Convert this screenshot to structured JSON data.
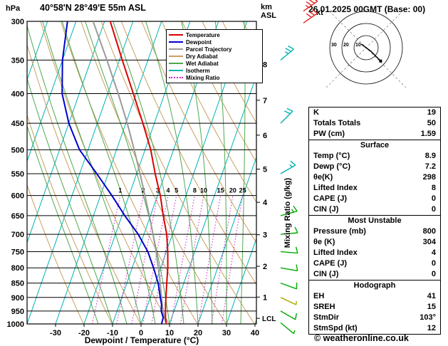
{
  "header": {
    "pressure_unit": "hPa",
    "station_title": "40°58'N 28°49'E 55m ASL",
    "altitude_unit_top": "km",
    "altitude_unit_bottom": "ASL",
    "datetime": "26.01.2025 00GMT (Base: 00)"
  },
  "skewt": {
    "xlabel": "Dewpoint / Temperature (°C)",
    "right_axis_label": "Mixing Ratio (g/kg)",
    "lcl_label": "LCL",
    "legend": [
      {
        "label": "Temperature",
        "color": "#dd0000",
        "style": "solid"
      },
      {
        "label": "Dewpoint",
        "color": "#0000cc",
        "style": "solid"
      },
      {
        "label": "Parcel Trajectory",
        "color": "#9a9a9a",
        "style": "solid"
      },
      {
        "label": "Dry Adiabat",
        "color": "#c8a05f",
        "style": "solid"
      },
      {
        "label": "Wet Adiabat",
        "color": "#4fa84f",
        "style": "solid"
      },
      {
        "label": "Isotherm",
        "color": "#00b2b2",
        "style": "solid"
      },
      {
        "label": "Mixing Ratio",
        "color": "#cc22cc",
        "style": "dotted"
      }
    ],
    "colors": {
      "temperature": "#dd0000",
      "dewpoint": "#0000cc",
      "parcel": "#9a9a9a",
      "dry_adiabat": "#c8a05f",
      "wet_adiabat": "#4fa84f",
      "isotherm": "#00b2b2",
      "mixing_ratio": "#cc22cc",
      "grid": "#000000"
    }
  },
  "chart_data": {
    "type": "line",
    "y_axis": {
      "label": "hPa",
      "scale": "log",
      "range": [
        300,
        1000
      ],
      "ticks": [
        300,
        350,
        400,
        450,
        500,
        550,
        600,
        650,
        700,
        750,
        800,
        850,
        900,
        950,
        1000
      ]
    },
    "x_axis": {
      "label": "Dewpoint / Temperature (°C)",
      "ticks": [
        -30,
        -20,
        -10,
        0,
        10,
        20,
        30,
        40
      ],
      "surface_range": [
        -40,
        40.5
      ]
    },
    "km_asl_ticks": [
      1,
      2,
      3,
      4,
      5,
      6,
      7,
      8
    ],
    "mixing_ratio_lines": [
      1,
      2,
      3,
      4,
      5,
      8,
      10,
      15,
      20,
      25
    ],
    "lcl_pressure_hpa": 978,
    "series": [
      {
        "name": "Temperature",
        "color": "#dd0000",
        "width": 2,
        "points": [
          [
            1000,
            8.9
          ],
          [
            975,
            7.8
          ],
          [
            950,
            7.0
          ],
          [
            925,
            6.2
          ],
          [
            900,
            5.5
          ],
          [
            850,
            4.0
          ],
          [
            800,
            2.5
          ],
          [
            750,
            0.5
          ],
          [
            700,
            -2.0
          ],
          [
            650,
            -5.5
          ],
          [
            600,
            -9.0
          ],
          [
            550,
            -13.5
          ],
          [
            500,
            -18.0
          ],
          [
            450,
            -24.0
          ],
          [
            400,
            -31.0
          ],
          [
            350,
            -39.0
          ],
          [
            300,
            -48.0
          ]
        ]
      },
      {
        "name": "Dewpoint",
        "color": "#0000cc",
        "width": 2,
        "points": [
          [
            1000,
            7.2
          ],
          [
            975,
            7.0
          ],
          [
            950,
            5.5
          ],
          [
            925,
            4.8
          ],
          [
            900,
            3.5
          ],
          [
            850,
            1.0
          ],
          [
            800,
            -2.5
          ],
          [
            750,
            -6.5
          ],
          [
            700,
            -12.0
          ],
          [
            650,
            -19.0
          ],
          [
            600,
            -26.0
          ],
          [
            550,
            -34.0
          ],
          [
            500,
            -43.0
          ],
          [
            450,
            -50.0
          ],
          [
            400,
            -56.0
          ],
          [
            350,
            -60.0
          ],
          [
            300,
            -63.0
          ]
        ]
      },
      {
        "name": "Parcel Trajectory",
        "color": "#9a9a9a",
        "width": 2,
        "points": [
          [
            1000,
            8.9
          ],
          [
            975,
            7.4
          ],
          [
            950,
            6.2
          ],
          [
            925,
            5.0
          ],
          [
            900,
            3.9
          ],
          [
            850,
            1.7
          ],
          [
            800,
            -0.8
          ],
          [
            750,
            -3.6
          ],
          [
            700,
            -6.8
          ],
          [
            650,
            -10.4
          ],
          [
            600,
            -14.4
          ],
          [
            550,
            -18.8
          ],
          [
            500,
            -23.8
          ],
          [
            450,
            -29.5
          ],
          [
            400,
            -36.3
          ],
          [
            350,
            -44.4
          ],
          [
            300,
            -54.0
          ]
        ]
      }
    ],
    "wind_barbs": [
      {
        "p": 288,
        "dir_deg": 55,
        "speed_kt": 35,
        "color": "#dd2222",
        "x_offset": 32
      },
      {
        "p": 302,
        "dir_deg": 55,
        "speed_kt": 30,
        "color": "#dd2222",
        "x_offset": 32
      },
      {
        "p": 350,
        "dir_deg": 50,
        "speed_kt": 25,
        "color": "#00b2b2",
        "x_offset": 0
      },
      {
        "p": 450,
        "dir_deg": 45,
        "speed_kt": 20,
        "color": "#00b2b2",
        "x_offset": 0
      },
      {
        "p": 550,
        "dir_deg": 60,
        "speed_kt": 15,
        "color": "#00b2b2",
        "x_offset": 0
      },
      {
        "p": 650,
        "dir_deg": 75,
        "speed_kt": 15,
        "color": "#00aa00",
        "x_offset": 0
      },
      {
        "p": 700,
        "dir_deg": 85,
        "speed_kt": 10,
        "color": "#00aa00",
        "x_offset": 0
      },
      {
        "p": 750,
        "dir_deg": 95,
        "speed_kt": 10,
        "color": "#00aa00",
        "x_offset": 0
      },
      {
        "p": 800,
        "dir_deg": 100,
        "speed_kt": 10,
        "color": "#00aa00",
        "x_offset": 0
      },
      {
        "p": 850,
        "dir_deg": 110,
        "speed_kt": 10,
        "color": "#00aa00",
        "x_offset": 0
      },
      {
        "p": 900,
        "dir_deg": 115,
        "speed_kt": 5,
        "color": "#aaa800",
        "x_offset": 0
      },
      {
        "p": 950,
        "dir_deg": 120,
        "speed_kt": 10,
        "color": "#00aa00",
        "x_offset": 0
      },
      {
        "p": 995,
        "dir_deg": 130,
        "speed_kt": 5,
        "color": "#00aa00",
        "x_offset": 0
      }
    ]
  },
  "hodograph": {
    "unit_label": "kt",
    "rings_kt": [
      10,
      20,
      30
    ],
    "trace_uv_kt": [
      [
        -4,
        3
      ],
      [
        0,
        0
      ],
      [
        4,
        -3
      ],
      [
        8,
        -7
      ],
      [
        12,
        -11
      ]
    ],
    "marker_uv_kt": [
      12,
      -11
    ]
  },
  "table": {
    "sections": [
      {
        "header": null,
        "rows": [
          [
            "K",
            "19"
          ],
          [
            "Totals Totals",
            "50"
          ],
          [
            "PW (cm)",
            "1.59"
          ]
        ]
      },
      {
        "header": "Surface",
        "rows": [
          [
            "Temp (°C)",
            "8.9"
          ],
          [
            "Dewp (°C)",
            "7.2"
          ],
          [
            "θe(K)",
            "298"
          ],
          [
            "Lifted Index",
            "8"
          ],
          [
            "CAPE (J)",
            "0"
          ],
          [
            "CIN (J)",
            "0"
          ]
        ]
      },
      {
        "header": "Most Unstable",
        "rows": [
          [
            "Pressure (mb)",
            "800"
          ],
          [
            "θe (K)",
            "304"
          ],
          [
            "Lifted Index",
            "4"
          ],
          [
            "CAPE (J)",
            "0"
          ],
          [
            "CIN (J)",
            "0"
          ]
        ]
      },
      {
        "header": "Hodograph",
        "rows": [
          [
            "EH",
            "41"
          ],
          [
            "SREH",
            "15"
          ],
          [
            "StmDir",
            "103°"
          ],
          [
            "StmSpd (kt)",
            "12"
          ]
        ]
      }
    ]
  },
  "footer": {
    "copyright": "© weatheronline.co.uk"
  }
}
